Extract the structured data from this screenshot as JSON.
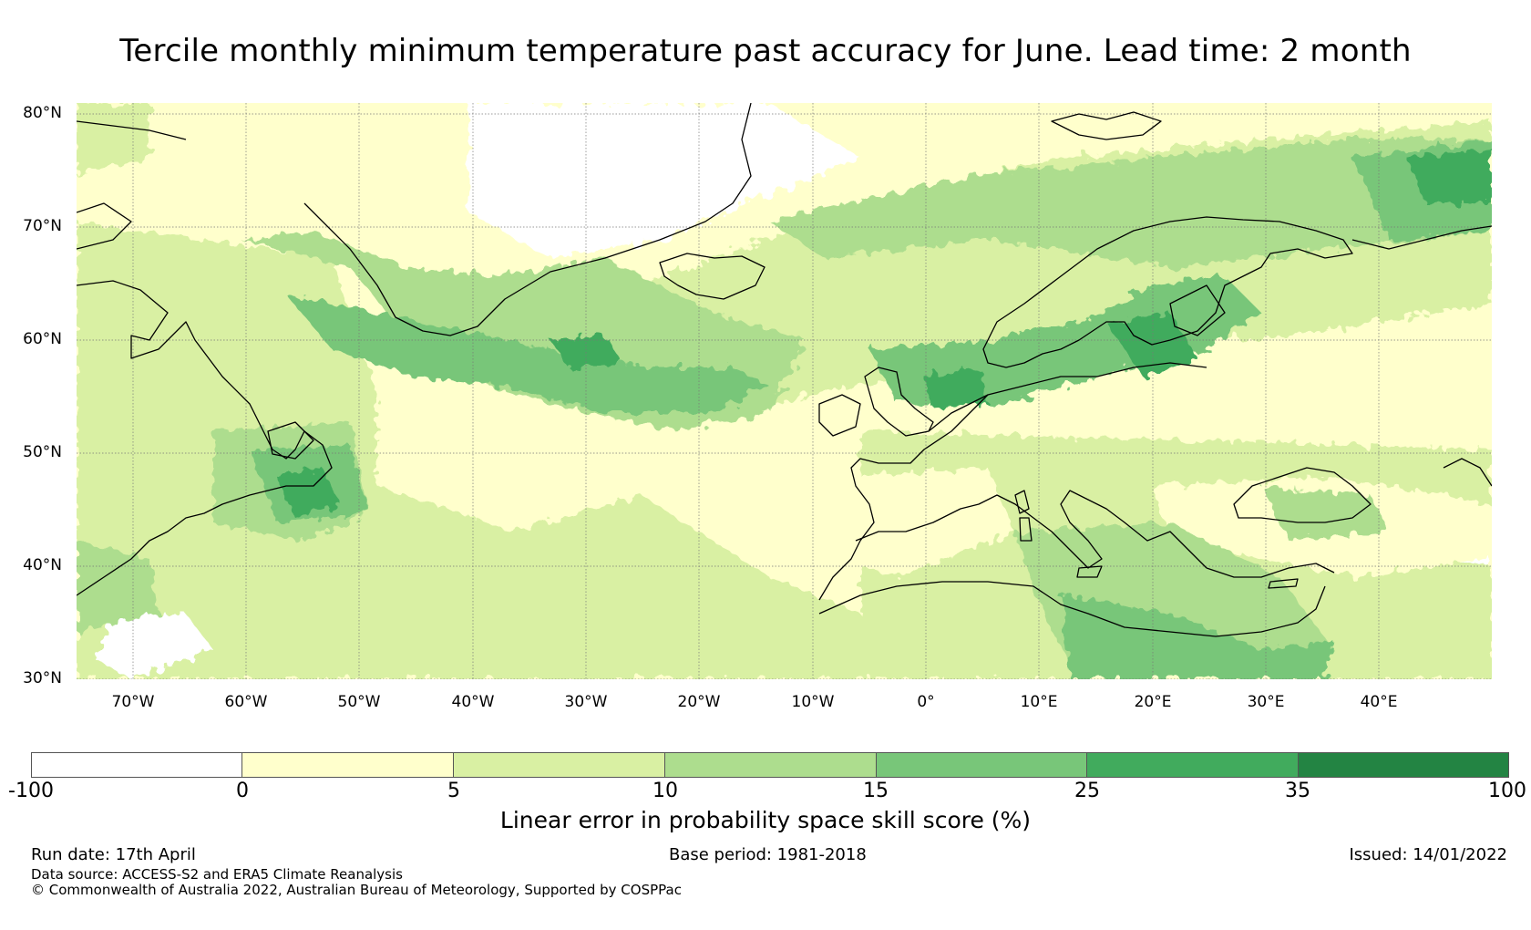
{
  "title": "Tercile monthly minimum temperature past accuracy for June. Lead time: 2 month",
  "map": {
    "lat_labels": [
      "80°N",
      "70°N",
      "60°N",
      "50°N",
      "40°N",
      "30°N"
    ],
    "lon_labels": [
      "70°W",
      "60°W",
      "50°W",
      "40°W",
      "30°W",
      "20°W",
      "10°W",
      "0°",
      "10°E",
      "20°E",
      "30°E",
      "40°E"
    ],
    "region": "North Atlantic / Europe",
    "lon_range": [
      -75,
      50
    ],
    "lat_range": [
      30,
      81
    ]
  },
  "colorbar": {
    "ticks": [
      "-100",
      "0",
      "5",
      "10",
      "15",
      "25",
      "35",
      "100"
    ],
    "colors": [
      "#ffffff",
      "#ffffcc",
      "#d9f0a3",
      "#addd8e",
      "#78c679",
      "#41ab5d",
      "#238443"
    ],
    "label": "Linear error in probability space skill score (%)"
  },
  "footer": {
    "run_date": "Run date: 17th April",
    "base_period": "Base period: 1981-2018",
    "issued": "Issued: 14/01/2022",
    "data_source": "Data source: ACCESS-S2 and ERA5 Climate Reanalysis",
    "copyright": "© Commonwealth of Australia 2022, Australian Bureau of Meteorology, Supported by COSPPac"
  }
}
